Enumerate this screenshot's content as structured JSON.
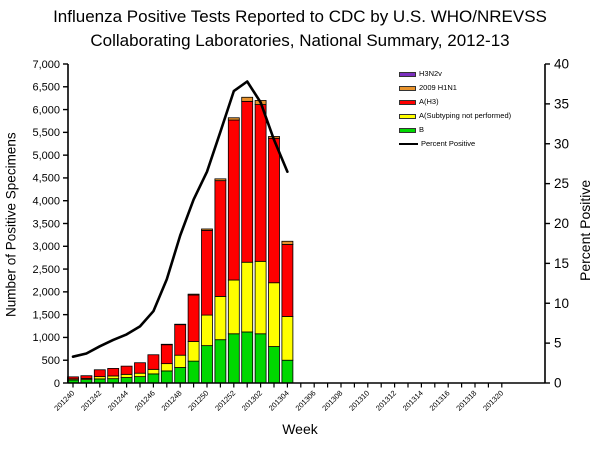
{
  "title": {
    "line1": "Influenza Positive Tests Reported to CDC by U.S. WHO/NREVSS",
    "line2": "Collaborating Laboratories, National Summary, 2012-13"
  },
  "axis_titles": {
    "y_left": "Number of Positive Specimens",
    "y_right": "Percent Positive",
    "x": "Week"
  },
  "legend": [
    {
      "label": "H3N2v",
      "color": "#7B2FBE",
      "type": "swatch"
    },
    {
      "label": "2009 H1N1",
      "color": "#E8932C",
      "type": "swatch"
    },
    {
      "label": "A(H3)",
      "color": "#FF0000",
      "type": "swatch"
    },
    {
      "label": "A(Subtyping not performed)",
      "color": "#FFFF00",
      "type": "swatch"
    },
    {
      "label": "B",
      "color": "#00D800",
      "type": "swatch"
    },
    {
      "label": "Percent Positive",
      "color": "#000000",
      "type": "line"
    }
  ],
  "chart_data": {
    "type": "bar",
    "subtype": "stacked-bars-with-percent-line-overlay",
    "title": "Influenza Positive Tests Reported to CDC by U.S. WHO/NREVSS Collaborating Laboratories, National Summary, 2012-13",
    "xlabel": "Week",
    "ylabel_left": "Number of Positive Specimens",
    "ylabel_right": "Percent Positive",
    "y_left": {
      "min": 0,
      "max": 7000,
      "step": 500
    },
    "y_right": {
      "min": 0,
      "max": 40,
      "step": 5
    },
    "grid": false,
    "legend_position": "top-right-inside",
    "x_slots": [
      "201240",
      "201241",
      "201242",
      "201243",
      "201244",
      "201245",
      "201246",
      "201247",
      "201248",
      "201249",
      "201250",
      "201251",
      "201252",
      "201301",
      "201302",
      "201303",
      "201304",
      "201305",
      "201306",
      "201307",
      "201308",
      "201309",
      "201310",
      "201311",
      "201312",
      "201313",
      "201314",
      "201315",
      "201316",
      "201317",
      "201318",
      "201319",
      "201320"
    ],
    "x_tick_labels_shown": [
      "201240",
      "201242",
      "201244",
      "201246",
      "201248",
      "201250",
      "201252",
      "201302",
      "201304",
      "201306",
      "201308",
      "201310",
      "201312",
      "201314",
      "201316",
      "201318",
      "201320"
    ],
    "bar_weeks": [
      "201240",
      "201241",
      "201242",
      "201243",
      "201244",
      "201245",
      "201246",
      "201247",
      "201248",
      "201249",
      "201250",
      "201251",
      "201252",
      "201301",
      "201302",
      "201303",
      "201304"
    ],
    "series": [
      {
        "name": "B",
        "color": "#00D800",
        "values": [
          65,
          75,
          90,
          95,
          120,
          140,
          200,
          265,
          340,
          480,
          820,
          950,
          1080,
          1120,
          1080,
          800,
          500
        ]
      },
      {
        "name": "A(Subtyping not performed)",
        "color": "#FFFF00",
        "values": [
          25,
          25,
          50,
          60,
          70,
          75,
          100,
          160,
          270,
          430,
          670,
          950,
          1180,
          1530,
          1590,
          1400,
          960
        ]
      },
      {
        "name": "A(H3)",
        "color": "#FF0000",
        "values": [
          45,
          60,
          150,
          165,
          180,
          230,
          320,
          415,
          670,
          1020,
          1860,
          2540,
          3510,
          3530,
          3440,
          3170,
          1580
        ]
      },
      {
        "name": "2009 H1N1",
        "color": "#E8932C",
        "values": [
          0,
          0,
          0,
          0,
          0,
          0,
          0,
          10,
          10,
          20,
          30,
          40,
          50,
          90,
          90,
          40,
          70
        ]
      },
      {
        "name": "H3N2v",
        "color": "#7B2FBE",
        "values": [
          0,
          0,
          0,
          0,
          0,
          0,
          0,
          0,
          0,
          0,
          0,
          0,
          0,
          0,
          0,
          0,
          0
        ]
      }
    ],
    "bar_totals": [
      135,
      160,
      290,
      320,
      370,
      445,
      620,
      850,
      1290,
      1950,
      3380,
      4480,
      5820,
      6270,
      6200,
      5410,
      3110
    ],
    "line": {
      "name": "Percent Positive",
      "color": "#000000",
      "values": [
        3.3,
        3.7,
        4.6,
        5.4,
        6.1,
        7.1,
        9.0,
        13.0,
        18.5,
        23.0,
        26.5,
        31.5,
        36.6,
        37.8,
        35.2,
        30.5,
        26.5
      ]
    }
  }
}
